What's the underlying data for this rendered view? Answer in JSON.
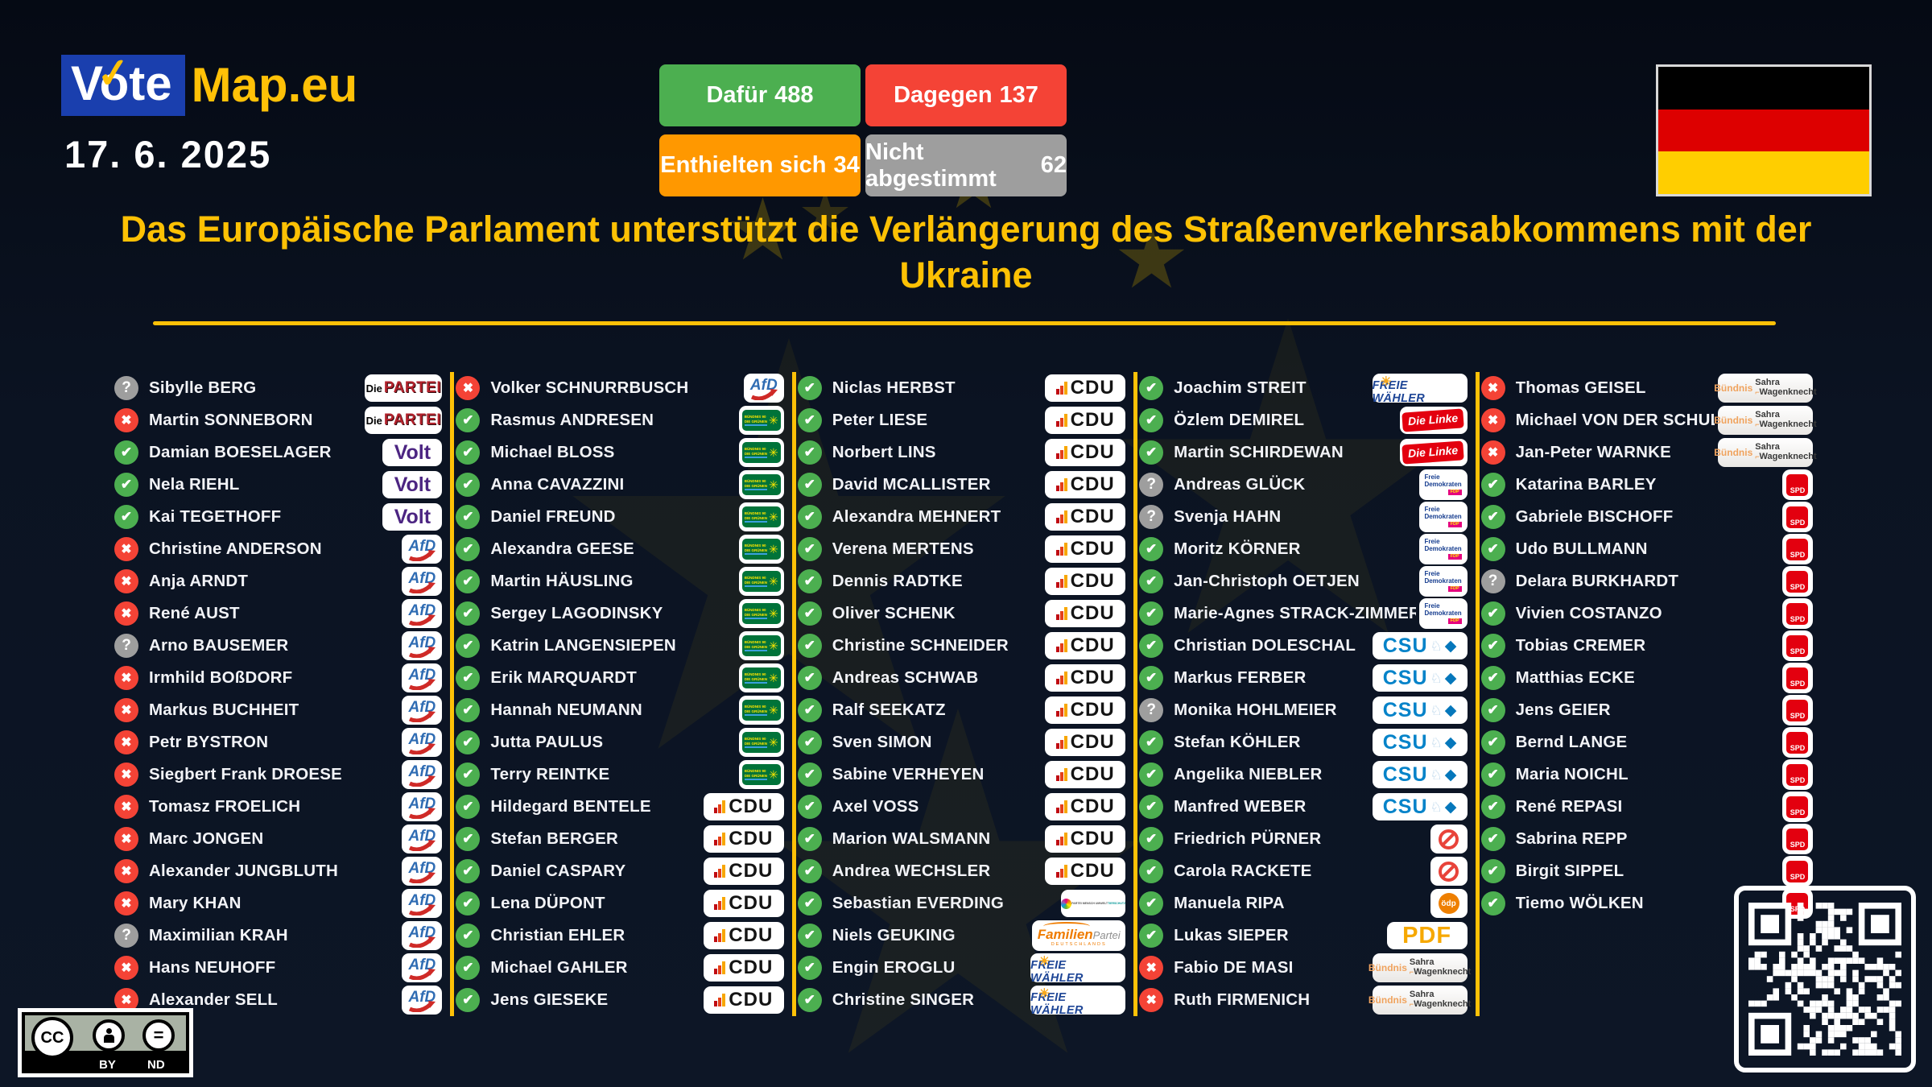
{
  "header": {
    "logo_vote": "Vote",
    "logo_map": "Map.eu",
    "logo_check": "✓",
    "date": "17. 6. 2025",
    "results": [
      {
        "key": "for",
        "label": "Dafür",
        "value": "488"
      },
      {
        "key": "against",
        "label": "Dagegen",
        "value": "137"
      },
      {
        "key": "abstain",
        "label": "Enthielten sich",
        "value": "34"
      },
      {
        "key": "novote",
        "label": "Nicht abgestimmt",
        "value": "62"
      }
    ],
    "flag": "Deutschland"
  },
  "title": "Das Europäische Parlament unterstützt die Verlängerung des Straßenverkehrsabkommens mit der Ukraine",
  "icons": {
    "for": "✔",
    "against": "✖",
    "none": "?"
  },
  "colors": {
    "for_green": "#4caf50",
    "against_red": "#f44336",
    "abstain_orange": "#ff9800",
    "novote_gray": "#9e9e9e",
    "accent_gold": "#ffc107",
    "logo_blue": "#1a3fae",
    "background": "#0b1322"
  },
  "parties": {
    "partei": {
      "name": "Die PARTEI",
      "t1": "Die",
      "t2": "PARTEI"
    },
    "volt": {
      "name": "Volt",
      "t1": "Volt"
    },
    "afd": {
      "name": "AfD",
      "t1": "AfD"
    },
    "gruene": {
      "name": "Bündnis 90/Die Grünen",
      "t1": "BÜNDNIS 90",
      "t2": "DIE GRÜNEN"
    },
    "cdu": {
      "name": "CDU",
      "t1": "CDU"
    },
    "tierschutz": {
      "name": "Tierschutzpartei",
      "t1": "PARTEI MENSCH UMWELT",
      "t2": "TIERSCHUTZ"
    },
    "familien": {
      "name": "Familien-Partei Deutschlands",
      "t1": "Familien",
      "t2": "Partei",
      "t3": "DEUTSCHLANDS"
    },
    "fw": {
      "name": "FREIE WÄHLER",
      "t1": "FREIE WÄHLER",
      "sun": "☀"
    },
    "linke": {
      "name": "Die Linke",
      "t1": "Die Linke"
    },
    "fdp": {
      "name": "Freie Demokraten",
      "t1": "Freie",
      "t2": "Demokraten",
      "t3": "FDP"
    },
    "csu": {
      "name": "CSU",
      "t1": "CSU",
      "lion": "♘",
      "diamond": "◆"
    },
    "independent": {
      "name": "parteilos"
    },
    "oedp": {
      "name": "ÖDP",
      "t1": "ödp"
    },
    "pdf": {
      "name": "Partei des Fortschritts",
      "t1": "PDF"
    },
    "bsw": {
      "name": "Bündnis Sahra Wagenknecht",
      "t1": "Bündnis",
      "t2": "Sahra",
      "t3": "Wagenknecht",
      "bracket": "⌐"
    },
    "spd": {
      "name": "SPD",
      "t1": "SPD"
    }
  },
  "columns": [
    {
      "rows": [
        {
          "s": "none",
          "name": "Sibylle BERG",
          "party": "partei"
        },
        {
          "s": "against",
          "name": "Martin SONNEBORN",
          "party": "partei"
        },
        {
          "s": "for",
          "name": "Damian BOESELAGER",
          "party": "volt"
        },
        {
          "s": "for",
          "name": "Nela RIEHL",
          "party": "volt"
        },
        {
          "s": "for",
          "name": "Kai TEGETHOFF",
          "party": "volt"
        },
        {
          "s": "against",
          "name": "Christine ANDERSON",
          "party": "afd"
        },
        {
          "s": "against",
          "name": "Anja ARNDT",
          "party": "afd"
        },
        {
          "s": "against",
          "name": "René AUST",
          "party": "afd"
        },
        {
          "s": "none",
          "name": "Arno BAUSEMER",
          "party": "afd"
        },
        {
          "s": "against",
          "name": "Irmhild BOßDORF",
          "party": "afd"
        },
        {
          "s": "against",
          "name": "Markus BUCHHEIT",
          "party": "afd"
        },
        {
          "s": "against",
          "name": "Petr BYSTRON",
          "party": "afd"
        },
        {
          "s": "against",
          "name": "Siegbert Frank DROESE",
          "party": "afd"
        },
        {
          "s": "against",
          "name": "Tomasz FROELICH",
          "party": "afd"
        },
        {
          "s": "against",
          "name": "Marc JONGEN",
          "party": "afd"
        },
        {
          "s": "against",
          "name": "Alexander JUNGBLUTH",
          "party": "afd"
        },
        {
          "s": "against",
          "name": "Mary KHAN",
          "party": "afd"
        },
        {
          "s": "none",
          "name": "Maximilian KRAH",
          "party": "afd"
        },
        {
          "s": "against",
          "name": "Hans NEUHOFF",
          "party": "afd"
        },
        {
          "s": "against",
          "name": "Alexander SELL",
          "party": "afd"
        }
      ]
    },
    {
      "rows": [
        {
          "s": "against",
          "name": "Volker SCHNURRBUSCH",
          "party": "afd"
        },
        {
          "s": "for",
          "name": "Rasmus ANDRESEN",
          "party": "gruene"
        },
        {
          "s": "for",
          "name": "Michael BLOSS",
          "party": "gruene"
        },
        {
          "s": "for",
          "name": "Anna CAVAZZINI",
          "party": "gruene"
        },
        {
          "s": "for",
          "name": "Daniel FREUND",
          "party": "gruene"
        },
        {
          "s": "for",
          "name": "Alexandra GEESE",
          "party": "gruene"
        },
        {
          "s": "for",
          "name": "Martin HÄUSLING",
          "party": "gruene"
        },
        {
          "s": "for",
          "name": "Sergey LAGODINSKY",
          "party": "gruene"
        },
        {
          "s": "for",
          "name": "Katrin LANGENSIEPEN",
          "party": "gruene"
        },
        {
          "s": "for",
          "name": "Erik MARQUARDT",
          "party": "gruene"
        },
        {
          "s": "for",
          "name": "Hannah NEUMANN",
          "party": "gruene"
        },
        {
          "s": "for",
          "name": "Jutta PAULUS",
          "party": "gruene"
        },
        {
          "s": "for",
          "name": "Terry REINTKE",
          "party": "gruene"
        },
        {
          "s": "for",
          "name": "Hildegard BENTELE",
          "party": "cdu"
        },
        {
          "s": "for",
          "name": "Stefan BERGER",
          "party": "cdu"
        },
        {
          "s": "for",
          "name": "Daniel CASPARY",
          "party": "cdu"
        },
        {
          "s": "for",
          "name": "Lena DÜPONT",
          "party": "cdu"
        },
        {
          "s": "for",
          "name": "Christian EHLER",
          "party": "cdu"
        },
        {
          "s": "for",
          "name": "Michael GAHLER",
          "party": "cdu"
        },
        {
          "s": "for",
          "name": "Jens GIESEKE",
          "party": "cdu"
        }
      ]
    },
    {
      "rows": [
        {
          "s": "for",
          "name": "Niclas HERBST",
          "party": "cdu"
        },
        {
          "s": "for",
          "name": "Peter LIESE",
          "party": "cdu"
        },
        {
          "s": "for",
          "name": "Norbert LINS",
          "party": "cdu"
        },
        {
          "s": "for",
          "name": "David MCALLISTER",
          "party": "cdu"
        },
        {
          "s": "for",
          "name": "Alexandra MEHNERT",
          "party": "cdu"
        },
        {
          "s": "for",
          "name": "Verena MERTENS",
          "party": "cdu"
        },
        {
          "s": "for",
          "name": "Dennis RADTKE",
          "party": "cdu"
        },
        {
          "s": "for",
          "name": "Oliver SCHENK",
          "party": "cdu"
        },
        {
          "s": "for",
          "name": "Christine SCHNEIDER",
          "party": "cdu"
        },
        {
          "s": "for",
          "name": "Andreas SCHWAB",
          "party": "cdu"
        },
        {
          "s": "for",
          "name": "Ralf SEEKATZ",
          "party": "cdu"
        },
        {
          "s": "for",
          "name": "Sven SIMON",
          "party": "cdu"
        },
        {
          "s": "for",
          "name": "Sabine VERHEYEN",
          "party": "cdu"
        },
        {
          "s": "for",
          "name": "Axel VOSS",
          "party": "cdu"
        },
        {
          "s": "for",
          "name": "Marion WALSMANN",
          "party": "cdu"
        },
        {
          "s": "for",
          "name": "Andrea WECHSLER",
          "party": "cdu"
        },
        {
          "s": "for",
          "name": "Sebastian EVERDING",
          "party": "tierschutz"
        },
        {
          "s": "for",
          "name": "Niels GEUKING",
          "party": "familien"
        },
        {
          "s": "for",
          "name": "Engin EROGLU",
          "party": "fw"
        },
        {
          "s": "for",
          "name": "Christine SINGER",
          "party": "fw"
        }
      ]
    },
    {
      "rows": [
        {
          "s": "for",
          "name": "Joachim STREIT",
          "party": "fw"
        },
        {
          "s": "for",
          "name": "Özlem DEMIREL",
          "party": "linke"
        },
        {
          "s": "for",
          "name": "Martin SCHIRDEWAN",
          "party": "linke"
        },
        {
          "s": "none",
          "name": "Andreas GLÜCK",
          "party": "fdp"
        },
        {
          "s": "none",
          "name": "Svenja HAHN",
          "party": "fdp"
        },
        {
          "s": "for",
          "name": "Moritz KÖRNER",
          "party": "fdp"
        },
        {
          "s": "for",
          "name": "Jan-Christoph OETJEN",
          "party": "fdp"
        },
        {
          "s": "for",
          "name": "Marie-Agnes STRACK-ZIMMERMANN",
          "party": "fdp"
        },
        {
          "s": "for",
          "name": "Christian DOLESCHAL",
          "party": "csu"
        },
        {
          "s": "for",
          "name": "Markus FERBER",
          "party": "csu"
        },
        {
          "s": "none",
          "name": "Monika HOHLMEIER",
          "party": "csu"
        },
        {
          "s": "for",
          "name": "Stefan KÖHLER",
          "party": "csu"
        },
        {
          "s": "for",
          "name": "Angelika NIEBLER",
          "party": "csu"
        },
        {
          "s": "for",
          "name": "Manfred WEBER",
          "party": "csu"
        },
        {
          "s": "for",
          "name": "Friedrich PÜRNER",
          "party": "independent"
        },
        {
          "s": "for",
          "name": "Carola RACKETE",
          "party": "independent"
        },
        {
          "s": "for",
          "name": "Manuela RIPA",
          "party": "oedp"
        },
        {
          "s": "for",
          "name": "Lukas SIEPER",
          "party": "pdf"
        },
        {
          "s": "against",
          "name": "Fabio DE MASI",
          "party": "bsw"
        },
        {
          "s": "against",
          "name": "Ruth FIRMENICH",
          "party": "bsw"
        }
      ]
    },
    {
      "rows": [
        {
          "s": "against",
          "name": "Thomas GEISEL",
          "party": "bsw"
        },
        {
          "s": "against",
          "name": "Michael VON DER SCHULENBURG",
          "party": "bsw"
        },
        {
          "s": "against",
          "name": "Jan-Peter WARNKE",
          "party": "bsw"
        },
        {
          "s": "for",
          "name": "Katarina BARLEY",
          "party": "spd"
        },
        {
          "s": "for",
          "name": "Gabriele BISCHOFF",
          "party": "spd"
        },
        {
          "s": "for",
          "name": "Udo BULLMANN",
          "party": "spd"
        },
        {
          "s": "none",
          "name": "Delara BURKHARDT",
          "party": "spd"
        },
        {
          "s": "for",
          "name": "Vivien COSTANZO",
          "party": "spd"
        },
        {
          "s": "for",
          "name": "Tobias CREMER",
          "party": "spd"
        },
        {
          "s": "for",
          "name": "Matthias ECKE",
          "party": "spd"
        },
        {
          "s": "for",
          "name": "Jens GEIER",
          "party": "spd"
        },
        {
          "s": "for",
          "name": "Bernd LANGE",
          "party": "spd"
        },
        {
          "s": "for",
          "name": "Maria NOICHL",
          "party": "spd"
        },
        {
          "s": "for",
          "name": "René REPASI",
          "party": "spd"
        },
        {
          "s": "for",
          "name": "Sabrina REPP",
          "party": "spd"
        },
        {
          "s": "for",
          "name": "Birgit SIPPEL",
          "party": "spd"
        },
        {
          "s": "for",
          "name": "Tiemo WÖLKEN",
          "party": "spd"
        }
      ]
    }
  ],
  "footer": {
    "license": {
      "cc": "CC",
      "by": "BY",
      "nd": "ND",
      "equals": "="
    }
  }
}
